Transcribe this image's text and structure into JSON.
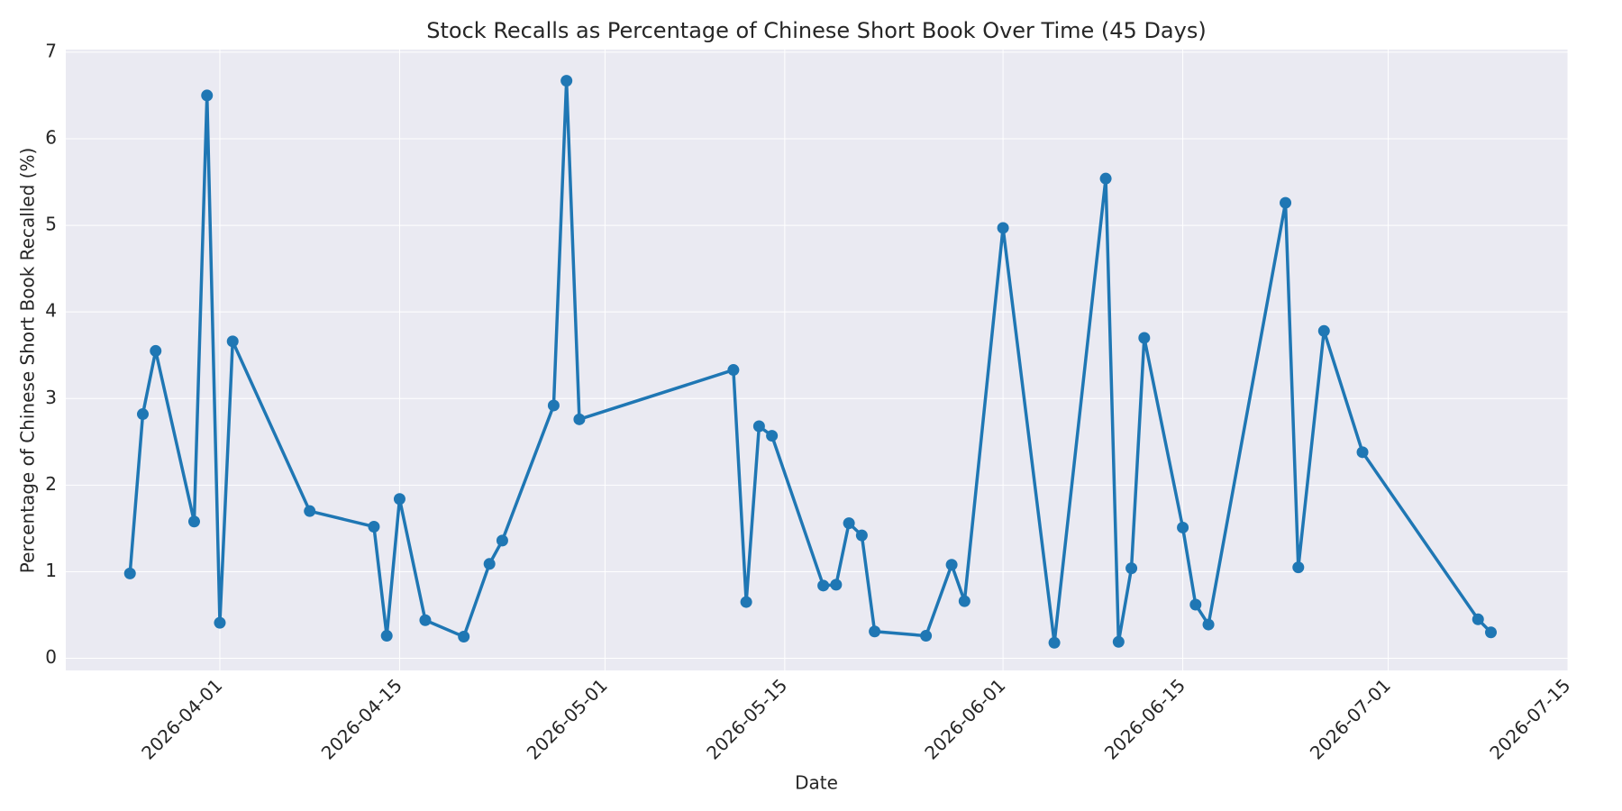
{
  "chart_data": {
    "type": "line",
    "title": "Stock Recalls as Percentage of Chinese Short Book Over Time (45 Days)",
    "x_label": "Date",
    "y_label": "Percentage of Chinese Short Book Recalled (%)",
    "x": [
      "2026-03-25",
      "2026-03-26",
      "2026-03-27",
      "2026-03-30",
      "2026-03-31",
      "2026-04-01",
      "2026-04-02",
      "2026-04-08",
      "2026-04-13",
      "2026-04-14",
      "2026-04-15",
      "2026-04-17",
      "2026-04-20",
      "2026-04-22",
      "2026-04-23",
      "2026-04-27",
      "2026-04-28",
      "2026-04-29",
      "2026-05-11",
      "2026-05-12",
      "2026-05-13",
      "2026-05-14",
      "2026-05-18",
      "2026-05-19",
      "2026-05-20",
      "2026-05-21",
      "2026-05-22",
      "2026-05-26",
      "2026-05-28",
      "2026-05-29",
      "2026-06-01",
      "2026-06-05",
      "2026-06-09",
      "2026-06-10",
      "2026-06-11",
      "2026-06-12",
      "2026-06-15",
      "2026-06-16",
      "2026-06-17",
      "2026-06-23",
      "2026-06-24",
      "2026-06-26",
      "2026-06-29",
      "2026-07-08",
      "2026-07-09"
    ],
    "values": [
      0.98,
      2.82,
      3.55,
      1.58,
      6.5,
      0.41,
      3.66,
      1.7,
      1.52,
      0.26,
      1.84,
      0.44,
      0.25,
      1.09,
      1.36,
      2.92,
      6.67,
      2.76,
      3.33,
      0.65,
      2.68,
      2.57,
      0.84,
      0.85,
      1.56,
      1.42,
      0.31,
      0.26,
      1.08,
      0.66,
      4.97,
      0.18,
      5.54,
      0.19,
      1.04,
      3.7,
      1.51,
      0.62,
      0.39,
      5.26,
      1.05,
      3.78,
      2.38,
      0.45,
      0.3
    ],
    "color": "#1f77b4",
    "xlim": [
      "2026-03-20",
      "2026-07-15"
    ],
    "xticks": [
      "2026-04-01",
      "2026-04-15",
      "2026-05-01",
      "2026-05-15",
      "2026-06-01",
      "2026-06-15",
      "2026-07-01",
      "2026-07-15"
    ],
    "ylim": [
      -0.14,
      7.03
    ],
    "yticks": [
      0,
      1,
      2,
      3,
      4,
      5,
      6,
      7
    ],
    "grid": true
  }
}
